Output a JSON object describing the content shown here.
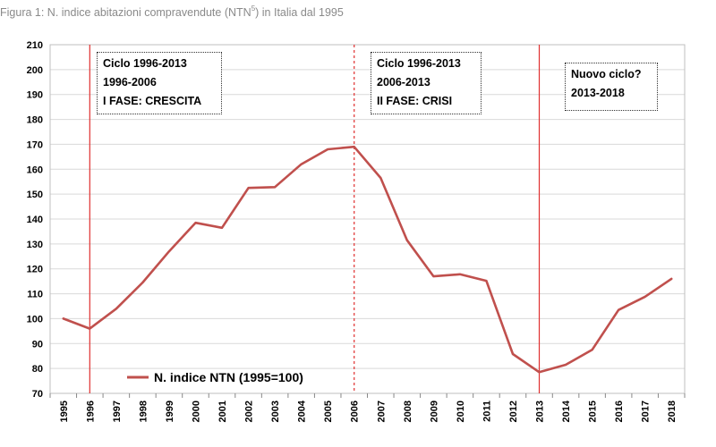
{
  "figure": {
    "caption_main": "Figura 1: N. indice abitazioni compravendute (NTN",
    "caption_sup": "5",
    "caption_tail": ") in Italia dal 1995"
  },
  "annotations": [
    {
      "lines": [
        "Ciclo 1996-2013",
        "1996-2006",
        "I FASE: CRESCITA"
      ]
    },
    {
      "lines": [
        "Ciclo 1996-2013",
        "2006-2013",
        "II FASE: CRISI"
      ]
    },
    {
      "lines": [
        "Nuovo ciclo?",
        "2013-2018"
      ]
    }
  ],
  "colors": {
    "series": "#c0504d",
    "vline": "#e03030",
    "grid": "#d9d9d9"
  },
  "chart_data": {
    "type": "line",
    "title": "",
    "x": [
      "1995",
      "1996",
      "1997",
      "1998",
      "1999",
      "2000",
      "2001",
      "2002",
      "2003",
      "2004",
      "2005",
      "2006",
      "2007",
      "2008",
      "2009",
      "2010",
      "2011",
      "2012",
      "2013",
      "2014",
      "2015",
      "2016",
      "2017",
      "2018"
    ],
    "series": [
      {
        "name": "N. indice NTN (1995=100)",
        "values": [
          100,
          96,
          104,
          114.5,
          127,
          138.5,
          136.5,
          152.5,
          152.8,
          162,
          168,
          169,
          156.5,
          131.5,
          117,
          117.8,
          115.2,
          85.8,
          78.5,
          81.5,
          87.5,
          103.5,
          108.8,
          116
        ]
      }
    ],
    "ylim": [
      70,
      210
    ],
    "yticks": [
      70,
      80,
      90,
      100,
      110,
      120,
      130,
      140,
      150,
      160,
      170,
      180,
      190,
      200,
      210
    ],
    "vlines": [
      {
        "year": "1996",
        "style": "solid"
      },
      {
        "year": "2006",
        "style": "dashed"
      },
      {
        "year": "2013",
        "style": "solid"
      }
    ],
    "legend_position": "bottom-left",
    "grid": true
  }
}
